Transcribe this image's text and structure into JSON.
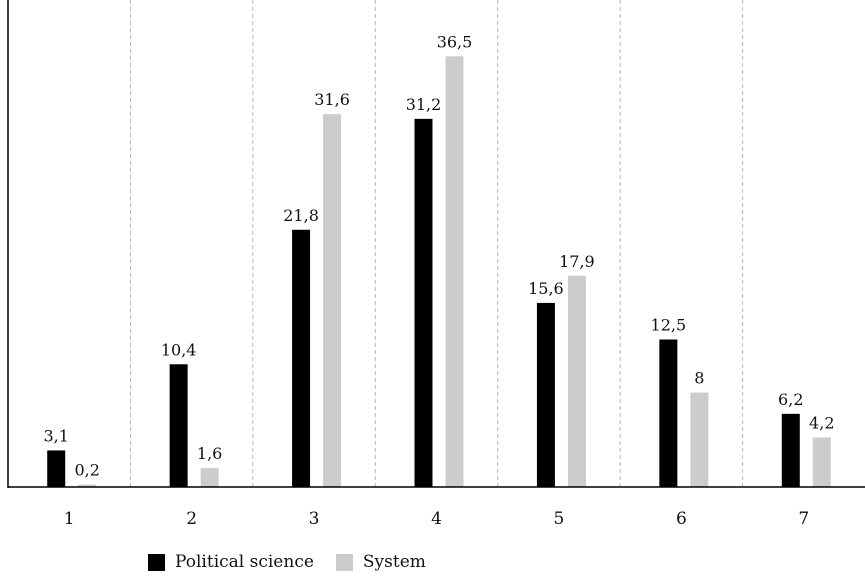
{
  "chart_data": {
    "type": "bar",
    "categories": [
      "1",
      "2",
      "3",
      "4",
      "5",
      "6",
      "7"
    ],
    "series": [
      {
        "name": "Political science",
        "values": [
          3.1,
          10.4,
          21.8,
          31.2,
          15.6,
          12.5,
          6.2
        ],
        "labels": [
          "3,1",
          "10,4",
          "21,8",
          "31,2",
          "15,6",
          "12,5",
          "6,2"
        ],
        "color": "#000000"
      },
      {
        "name": "System",
        "values": [
          0.2,
          1.6,
          31.6,
          36.5,
          17.9,
          8,
          4.2
        ],
        "labels": [
          "0,2",
          "1,6",
          "31,6",
          "36,5",
          "17,9",
          "8",
          "4,2"
        ],
        "color": "#cccccc"
      }
    ],
    "ylim": [
      0,
      40
    ],
    "grid": "vertical dashed separators between categories",
    "legend_position": "bottom"
  }
}
